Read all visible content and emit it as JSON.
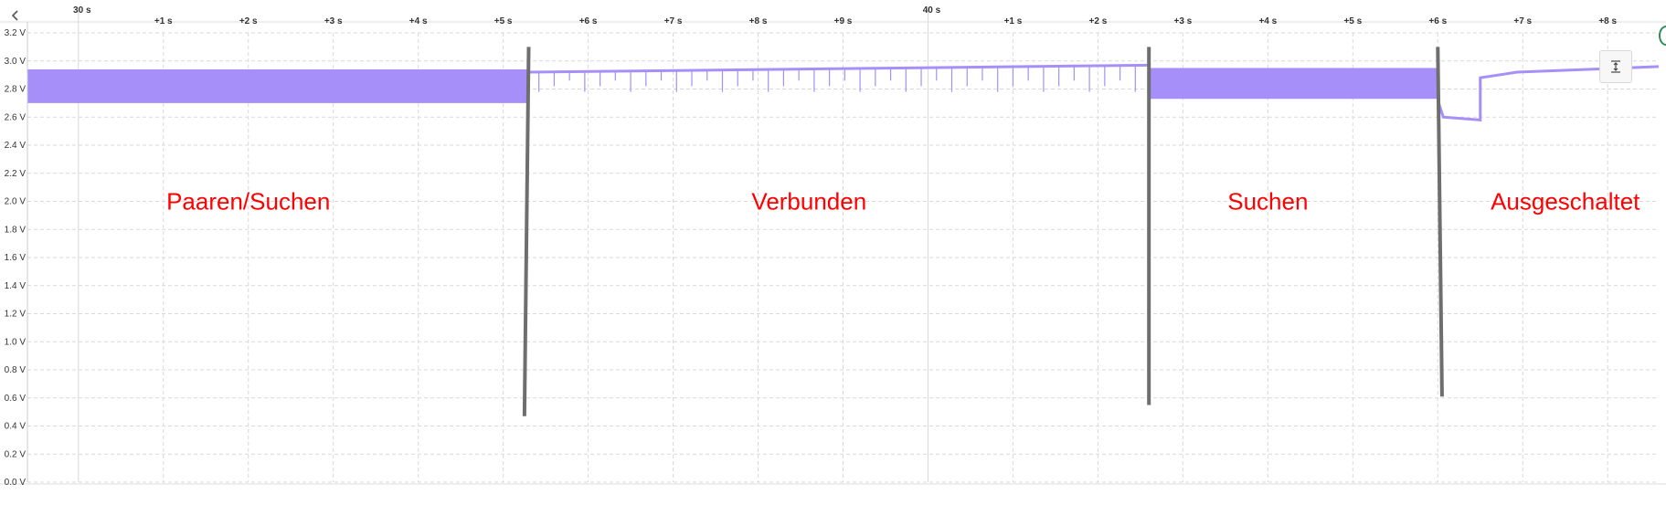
{
  "colors": {
    "signal": "#a68ff8",
    "grid": "#d9d9d9",
    "marker": "#6e6e6e",
    "region_text": "#ff0000",
    "status_accent": "#2e8b57"
  },
  "icons": {
    "back": "chevron-left-icon",
    "zoom": "fit-vertical-icon",
    "status": "status-circle-icon"
  },
  "chart_data": {
    "type": "line",
    "title": "",
    "xlabel": "",
    "ylabel": "",
    "x_unit": "s",
    "y_unit": "V",
    "xlim": [
      29.4,
      48.6
    ],
    "ylim": [
      0,
      3.2
    ],
    "y_ticks": [
      "0.0 V",
      "0.2 V",
      "0.4 V",
      "0.6 V",
      "0.8 V",
      "1.0 V",
      "1.2 V",
      "1.4 V",
      "1.6 V",
      "1.8 V",
      "2.0 V",
      "2.2 V",
      "2.4 V",
      "2.6 V",
      "2.8 V",
      "3.0 V",
      "3.2 V"
    ],
    "y_tick_values": [
      0,
      0.2,
      0.4,
      0.6,
      0.8,
      1.0,
      1.2,
      1.4,
      1.6,
      1.8,
      2.0,
      2.2,
      2.4,
      2.6,
      2.8,
      3.0,
      3.2
    ],
    "x_major_ticks": [
      {
        "value": 30,
        "label": "30 s"
      },
      {
        "value": 40,
        "label": "40 s"
      }
    ],
    "x_ticks": [
      {
        "value": 31,
        "label": "+1 s"
      },
      {
        "value": 32,
        "label": "+2 s"
      },
      {
        "value": 33,
        "label": "+3 s"
      },
      {
        "value": 34,
        "label": "+4 s"
      },
      {
        "value": 35,
        "label": "+5 s"
      },
      {
        "value": 36,
        "label": "+6 s"
      },
      {
        "value": 37,
        "label": "+7 s"
      },
      {
        "value": 38,
        "label": "+8 s"
      },
      {
        "value": 39,
        "label": "+9 s"
      },
      {
        "value": 41,
        "label": "+1 s"
      },
      {
        "value": 42,
        "label": "+2 s"
      },
      {
        "value": 43,
        "label": "+3 s"
      },
      {
        "value": 44,
        "label": "+4 s"
      },
      {
        "value": 45,
        "label": "+5 s"
      },
      {
        "value": 46,
        "label": "+6 s"
      },
      {
        "value": 47,
        "label": "+7 s"
      },
      {
        "value": 48,
        "label": "+8 s"
      }
    ],
    "grid": true,
    "segments": [
      {
        "label": "Paaren/Suchen",
        "kind": "band",
        "x": [
          29.4,
          35.3
        ],
        "y_low": 2.7,
        "y_high": 2.94
      },
      {
        "label": "Verbunden",
        "kind": "line_with_dips",
        "x": [
          35.3,
          42.6
        ],
        "y_start": 2.92,
        "y_end": 2.97,
        "dip_min": 2.78,
        "dip_period": 0.18
      },
      {
        "label": "Suchen",
        "kind": "band",
        "x": [
          42.6,
          46.0
        ],
        "y_low": 2.73,
        "y_high": 2.95
      },
      {
        "label": "Ausgeschaltet",
        "kind": "drop_then_recover",
        "x": [
          46.0,
          48.6
        ],
        "drop_level": 2.58,
        "drop_end": 46.5,
        "recover_level": 2.94
      }
    ],
    "markers": [
      {
        "x_top": 35.3,
        "x_bottom": 35.25,
        "y_top": 3.1,
        "y_bottom": 0.47
      },
      {
        "x_top": 42.6,
        "x_bottom": 42.6,
        "y_top": 3.1,
        "y_bottom": 0.55
      },
      {
        "x_top": 46.0,
        "x_bottom": 46.05,
        "y_top": 3.1,
        "y_bottom": 0.61
      }
    ],
    "annotations": [
      {
        "text": "Paaren/Suchen",
        "x": 32.0,
        "y": 2.0
      },
      {
        "text": "Verbunden",
        "x": 38.6,
        "y": 2.0
      },
      {
        "text": "Suchen",
        "x": 44.0,
        "y": 2.0
      },
      {
        "text": "Ausgeschaltet",
        "x": 47.5,
        "y": 2.0
      }
    ]
  }
}
